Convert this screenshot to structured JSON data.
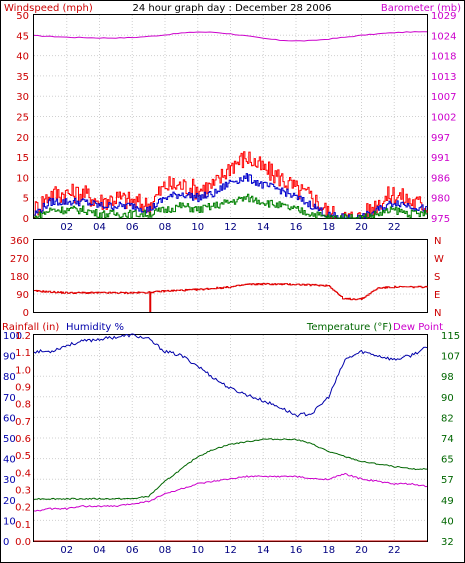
{
  "title": "24 hour graph day : December 28 2006",
  "colors": {
    "windspeed": "#ff0000",
    "barometer": "#cc00cc",
    "wind_avg": "#0000cc",
    "wind_min": "#008000",
    "direction": "#e00000",
    "rain": "#cc0000",
    "humidity": "#0000aa",
    "temperature": "#006600",
    "dewpoint": "#cc00cc",
    "grid": "#d0d0d0"
  },
  "chart_data": [
    {
      "type": "line",
      "name": "wind-barometer",
      "left_label": "Windspeed (mph)",
      "right_label": "Barometer (mb)",
      "x_ticks": [
        "02",
        "04",
        "06",
        "08",
        "10",
        "12",
        "14",
        "16",
        "18",
        "20",
        "22"
      ],
      "y_left_ticks": [
        "0",
        "5",
        "10",
        "15",
        "20",
        "25",
        "30",
        "35",
        "40",
        "45",
        "50"
      ],
      "y_right_ticks": [
        "975",
        "980",
        "986",
        "991",
        "997",
        "1002",
        "1007",
        "1013",
        "1018",
        "1024",
        "1029"
      ],
      "ylim_left": [
        0,
        50
      ],
      "ylim_right": [
        975,
        1029
      ],
      "hours": [
        0,
        1,
        2,
        3,
        4,
        5,
        6,
        7,
        8,
        9,
        10,
        11,
        12,
        13,
        14,
        15,
        16,
        17,
        18,
        19,
        20,
        21,
        22,
        23,
        24
      ],
      "series": [
        {
          "key": "barometer",
          "axis": "right",
          "values": [
            1023.5,
            1023.3,
            1023.1,
            1023.0,
            1022.9,
            1022.9,
            1023.0,
            1023.3,
            1023.7,
            1024.2,
            1024.5,
            1024.4,
            1024.0,
            1023.4,
            1022.8,
            1022.3,
            1022.1,
            1022.2,
            1022.6,
            1023.1,
            1023.6,
            1024.0,
            1024.3,
            1024.5,
            1024.5
          ]
        },
        {
          "key": "wind_max",
          "axis": "left",
          "values": [
            2,
            6,
            6,
            6,
            4,
            5,
            4,
            3,
            8,
            8,
            7,
            8,
            13,
            15,
            12,
            10,
            7,
            5,
            1,
            0,
            0,
            4,
            6,
            4,
            3
          ]
        },
        {
          "key": "wind_avg",
          "axis": "left",
          "values": [
            1,
            4,
            4,
            4,
            3,
            3,
            3,
            2,
            5,
            6,
            5,
            6,
            9,
            10,
            8,
            7,
            5,
            3,
            0.5,
            0,
            0,
            2,
            4,
            3,
            2
          ]
        },
        {
          "key": "wind_min",
          "axis": "left",
          "values": [
            0,
            2,
            2,
            2,
            1,
            1,
            1,
            1,
            2,
            3,
            2,
            3,
            4,
            5,
            4,
            3,
            2,
            1,
            0,
            0,
            0,
            1,
            2,
            1,
            1
          ]
        }
      ]
    },
    {
      "type": "line",
      "name": "wind-direction",
      "y_ticks": [
        "0",
        "90",
        "180",
        "270",
        "360"
      ],
      "compass": [
        "N",
        "W",
        "S",
        "E",
        "N"
      ],
      "ylim": [
        0,
        360
      ],
      "hours": [
        0,
        2,
        4,
        6,
        7,
        8,
        10,
        12,
        13,
        14,
        16,
        17,
        18,
        18.9,
        20,
        21,
        22,
        24
      ],
      "values": [
        105,
        96,
        96,
        96,
        98,
        105,
        112,
        125,
        138,
        140,
        138,
        135,
        132,
        65,
        65,
        120,
        125,
        125
      ]
    },
    {
      "type": "line",
      "name": "rain-humidity-temperature",
      "rain_label": "Rainfall (in)",
      "humidity_label": "Humidity %",
      "temperature_label": "Temperature (°F)",
      "dewpoint_label": "Dew Point",
      "x_ticks": [
        "02",
        "04",
        "06",
        "08",
        "10",
        "12",
        "14",
        "16",
        "18",
        "20",
        "22"
      ],
      "humidity_ticks": [
        "0",
        "10",
        "20",
        "30",
        "40",
        "50",
        "60",
        "70",
        "80",
        "90",
        "100"
      ],
      "rain_ticks": [
        "0.0",
        "0.1",
        "0.2",
        "0.3",
        "0.4",
        "0.5",
        "0.6",
        "0.7",
        "0.8",
        "0.9",
        "1.0",
        "1.1",
        "1.2"
      ],
      "temperature_ticks": [
        "32",
        "40",
        "49",
        "57",
        "65",
        "74",
        "82",
        "90",
        "98",
        "107",
        "115"
      ],
      "humidity_lim": [
        0,
        100
      ],
      "rain_lim": [
        0,
        1.2
      ],
      "temperature_lim": [
        32,
        115
      ],
      "hours": [
        0,
        1,
        2,
        3,
        4,
        5,
        6,
        7,
        8,
        9,
        10,
        11,
        12,
        13,
        14,
        15,
        16,
        17,
        18,
        19,
        20,
        21,
        22,
        23,
        24
      ],
      "series": [
        {
          "key": "humidity",
          "values": [
            92,
            92,
            95,
            97,
            98,
            99,
            100,
            98,
            92,
            90,
            85,
            79,
            74,
            71,
            68,
            65,
            61,
            62,
            70,
            88,
            92,
            90,
            88,
            90,
            94
          ]
        },
        {
          "key": "temperature",
          "values": [
            49,
            49,
            49,
            49,
            49,
            49,
            49,
            50,
            56,
            61,
            66,
            69,
            71,
            72,
            73,
            73,
            73,
            71,
            68,
            66,
            64,
            63,
            62,
            61,
            61
          ]
        },
        {
          "key": "dewpoint",
          "values": [
            44,
            45,
            45,
            46,
            46,
            46,
            47,
            48,
            51,
            53,
            55,
            56,
            57,
            58,
            58,
            58,
            58,
            57,
            57,
            59,
            57,
            56,
            55,
            55,
            54
          ]
        },
        {
          "key": "rain",
          "values": [
            0,
            0,
            0,
            0,
            0,
            0,
            0,
            0,
            0,
            0,
            0,
            0,
            0,
            0,
            0,
            0,
            0,
            0,
            0,
            0,
            0,
            0,
            0,
            0,
            0
          ]
        }
      ]
    }
  ]
}
